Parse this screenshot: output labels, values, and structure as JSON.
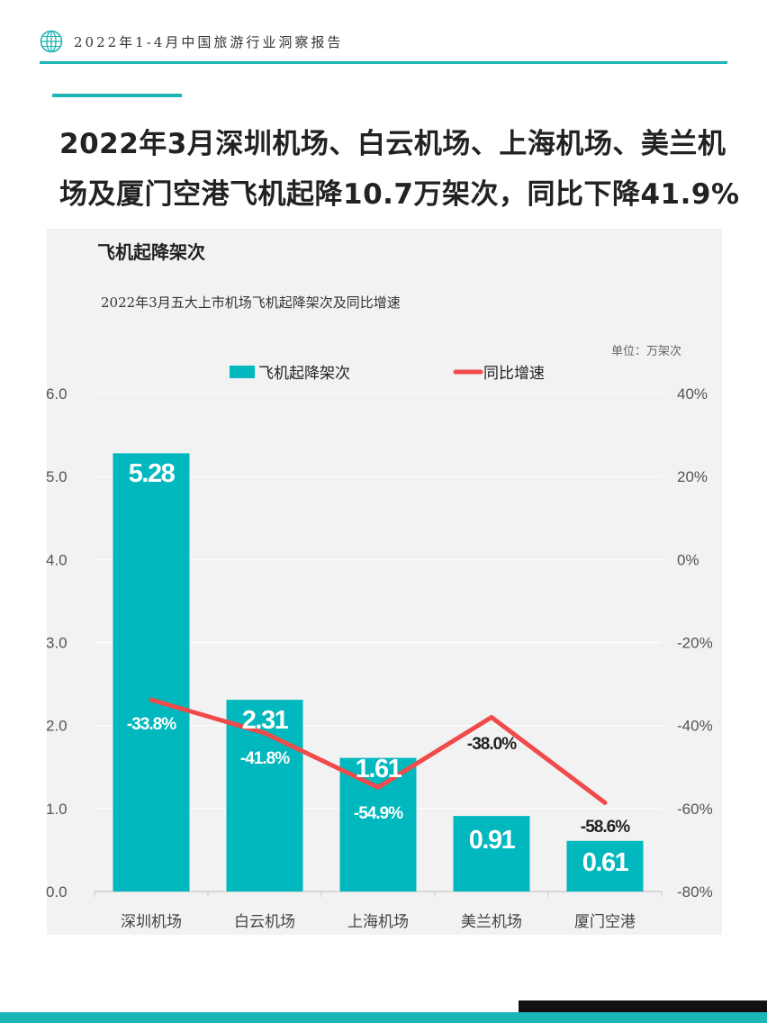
{
  "header": {
    "report_title": "2022年1-4月中国旅游行业洞察报告",
    "logo_icon": "globe-icon"
  },
  "main_title": "2022年3月深圳机场、白云机场、上海机场、美兰机场及厦门空港飞机起降10.7万架次，同比下降41.9%",
  "colors": {
    "accent": "#1cb5b5",
    "bar": "#00b8bd",
    "line": "#f04b4b",
    "panel": "#f2f2f2"
  },
  "chart_heading": "飞机起降架次",
  "chart_data": {
    "type": "bar",
    "title": "2022年3月五大上市机场飞机起降架次及同比增速",
    "unit": "单位：万架次",
    "categories": [
      "深圳机场",
      "白云机场",
      "上海机场",
      "美兰机场",
      "厦门空港"
    ],
    "series": [
      {
        "name": "飞机起降架次",
        "type": "bar",
        "axis": "left",
        "values": [
          5.28,
          2.31,
          1.61,
          0.91,
          0.61
        ],
        "labels": [
          "5.28",
          "2.31",
          "1.61",
          "0.91",
          "0.61"
        ]
      },
      {
        "name": "同比增速",
        "type": "line",
        "axis": "right",
        "values": [
          -33.8,
          -41.8,
          -54.9,
          -38.0,
          -58.6
        ],
        "labels": [
          "-33.8%",
          "-41.8%",
          "-54.9%",
          "-38.0%",
          "-58.6%"
        ]
      }
    ],
    "y_left": {
      "min": 0,
      "max": 6,
      "ticks": [
        "0.0",
        "1.0",
        "2.0",
        "3.0",
        "4.0",
        "5.0",
        "6.0"
      ]
    },
    "y_right": {
      "min": -80,
      "max": 40,
      "ticks": [
        "-80%",
        "-60%",
        "-40%",
        "-20%",
        "0%",
        "20%",
        "40%"
      ]
    },
    "grid": true,
    "legend_position": "top"
  }
}
